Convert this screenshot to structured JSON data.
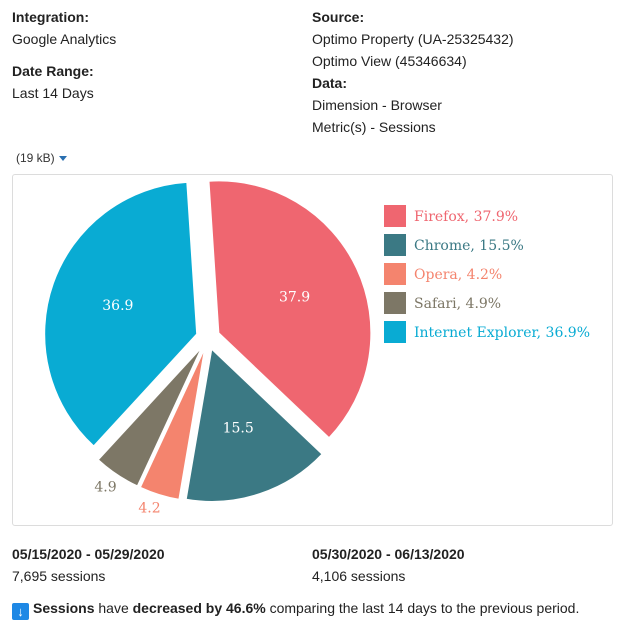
{
  "meta": {
    "integration_label": "Integration:",
    "integration_value": "Google Analytics",
    "date_range_label": "Date Range:",
    "date_range_value": "Last 14 Days",
    "source_label": "Source:",
    "source_line1": "Optimo Property (UA-25325432)",
    "source_line2": "Optimo View (45346634)",
    "data_label": "Data:",
    "data_line1": "Dimension - Browser",
    "data_line2": "Metric(s) - Sessions"
  },
  "file_size": "(19 kB)",
  "chart_data": {
    "type": "pie",
    "title": "",
    "slices": [
      {
        "name": "Firefox",
        "value": 37.9,
        "color": "#ef6670",
        "legend": "Firefox, 37.9%",
        "label": "37.9",
        "label_outside": false
      },
      {
        "name": "Chrome",
        "value": 15.5,
        "color": "#3b7984",
        "legend": "Chrome, 15.5%",
        "label": "15.5",
        "label_outside": false
      },
      {
        "name": "Opera",
        "value": 4.2,
        "color": "#f4846e",
        "legend": "Opera, 4.2%",
        "label": "4.2",
        "label_outside": true
      },
      {
        "name": "Safari",
        "value": 4.9,
        "color": "#7d7766",
        "legend": "Safari, 4.9%",
        "label": "4.9",
        "label_outside": true
      },
      {
        "name": "Internet Explorer",
        "value": 36.9,
        "color": "#09abd3",
        "legend": "Internet Explorer, 36.9%",
        "label": "36.9",
        "label_outside": false
      }
    ],
    "legend_position": "top-right"
  },
  "periods": [
    {
      "range": "05/15/2020 - 05/29/2020",
      "sessions": "7,695 sessions"
    },
    {
      "range": "05/30/2020 - 06/13/2020",
      "sessions": "4,106 sessions"
    }
  ],
  "summary": {
    "part1": "Sessions",
    "part2": " have ",
    "part3": "decreased by 46.6%",
    "part4": " comparing the last 14 days to the previous period."
  }
}
